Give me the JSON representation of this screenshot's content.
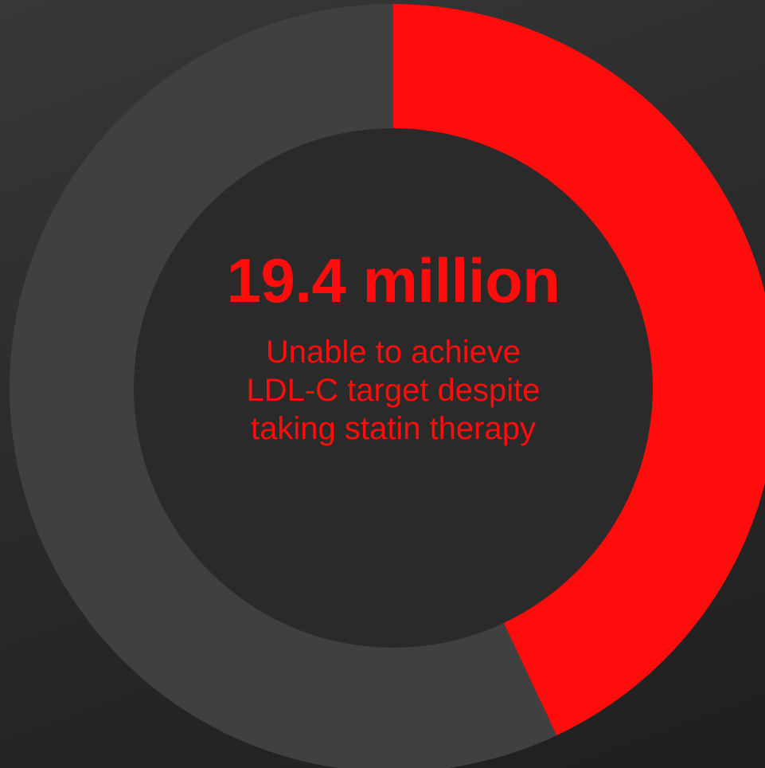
{
  "chart_data": {
    "type": "pie",
    "variant": "donut",
    "slices": [
      {
        "value": 43,
        "color": "#ff0d0d"
      },
      {
        "value": 57,
        "color": "#404040"
      }
    ],
    "center_value": "19.4 million",
    "center_caption": [
      "Unable to achieve",
      "LDL-C target despite",
      "taking statin therapy"
    ]
  },
  "colors": {
    "accent": "#ff0d0d",
    "ring_remainder": "#404040",
    "hole": "#2a2a2a"
  }
}
